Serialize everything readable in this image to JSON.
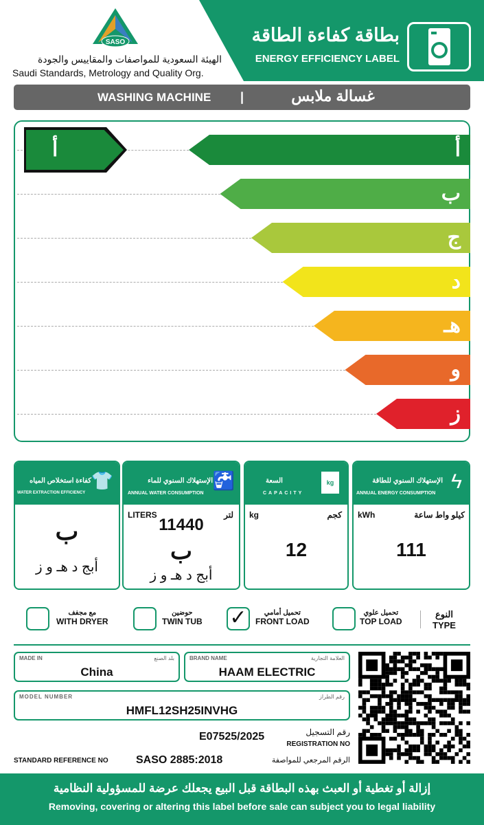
{
  "header": {
    "logo_text": "SASO",
    "org_ar": "الهيئة السعودية للمواصفات والمقاييس والجودة",
    "org_en": "Saudi Standards, Metrology and Quality Org.",
    "title_ar": "بطاقة كفاءة الطاقة",
    "title_en": "ENERGY EFFICIENCY LABEL",
    "icon": "washing-machine-icon"
  },
  "product": {
    "en": "WASHING MACHINE",
    "separator": "|",
    "ar": "غسالة ملابس"
  },
  "scale": {
    "classes": [
      {
        "label": "أ",
        "color": "#1a8a3b"
      },
      {
        "label": "ب",
        "color": "#4fad47"
      },
      {
        "label": "ج",
        "color": "#a9c83c"
      },
      {
        "label": "د",
        "color": "#f2e41b"
      },
      {
        "label": "هـ",
        "color": "#f5b51e"
      },
      {
        "label": "و",
        "color": "#e8692a"
      },
      {
        "label": "ز",
        "color": "#e0212b"
      }
    ],
    "rating": "أ"
  },
  "cards": {
    "energy": {
      "title_ar": "الإستهلاك السنوي للطاقة",
      "title_en": "ANNUAL ENERGY CONSUMPTION",
      "unit_en": "kWh",
      "unit_ar": "كيلو واط ساعة",
      "value": "111",
      "icon": "lightning-icon"
    },
    "capacity": {
      "title_ar": "السعة",
      "title_en": "CAPACITY",
      "unit_en": "kg",
      "unit_ar": "كجم",
      "value": "12",
      "icon": "shirt-kg-icon",
      "icon_text": "kg"
    },
    "water": {
      "title_ar": "الإستهلاك السنوي للماء",
      "title_en": "ANNUAL WATER CONSUMPTION",
      "unit_en": "LITERS",
      "unit_ar": "لتر",
      "value": "11440",
      "rating": "ب",
      "scale": "أبج د هـ و ز",
      "icon": "faucet-icon"
    },
    "extraction": {
      "title_ar": "كفاءة استخلاص المياه",
      "title_en": "WATER EXTRACTION EFFICIENCY",
      "rating": "ب",
      "scale": "أبج د هـ و ز",
      "icon": "wrung-shirt-icon"
    }
  },
  "type": {
    "label_ar": "النوع",
    "label_en": "TYPE",
    "options": [
      {
        "ar": "تحميل علوي",
        "en": "TOP LOAD",
        "checked": false
      },
      {
        "ar": "تحميل أمامي",
        "en": "FRONT LOAD",
        "checked": true
      },
      {
        "ar": "حوضين",
        "en": "TWIN TUB",
        "checked": false
      },
      {
        "ar": "مع مجفف",
        "en": "WITH DRYER",
        "checked": false
      }
    ],
    "check": "✓"
  },
  "fields": {
    "made_in": {
      "en": "MADE IN",
      "ar": "بلد الصنع",
      "value": "China"
    },
    "brand": {
      "en": "BRAND NAME",
      "ar": "العلامة التجارية",
      "value": "HAAM ELECTRIC"
    },
    "model": {
      "en": "MODEL NUMBER",
      "ar": "رقم الطراز",
      "value": "HMFL12SH25INVHG"
    },
    "registration": {
      "ar": "رقم التسجيل",
      "en": "REGISTRATION NO",
      "value": "E07525/2025"
    },
    "standard": {
      "en": "STANDARD REFERENCE NO",
      "ar": "الرقم المرجعي للمواصفة",
      "value": "SASO 2885:2018"
    }
  },
  "footer": {
    "ar": "إزالة أو تغطية أو العبث بهذه البطاقة قبل البيع يجعلك عرضة للمسؤولية النظامية",
    "en": "Removing, covering or altering this label before sale can subject you to legal liability"
  },
  "colors": {
    "brand_green": "#14976a",
    "product_bar": "#666666"
  }
}
